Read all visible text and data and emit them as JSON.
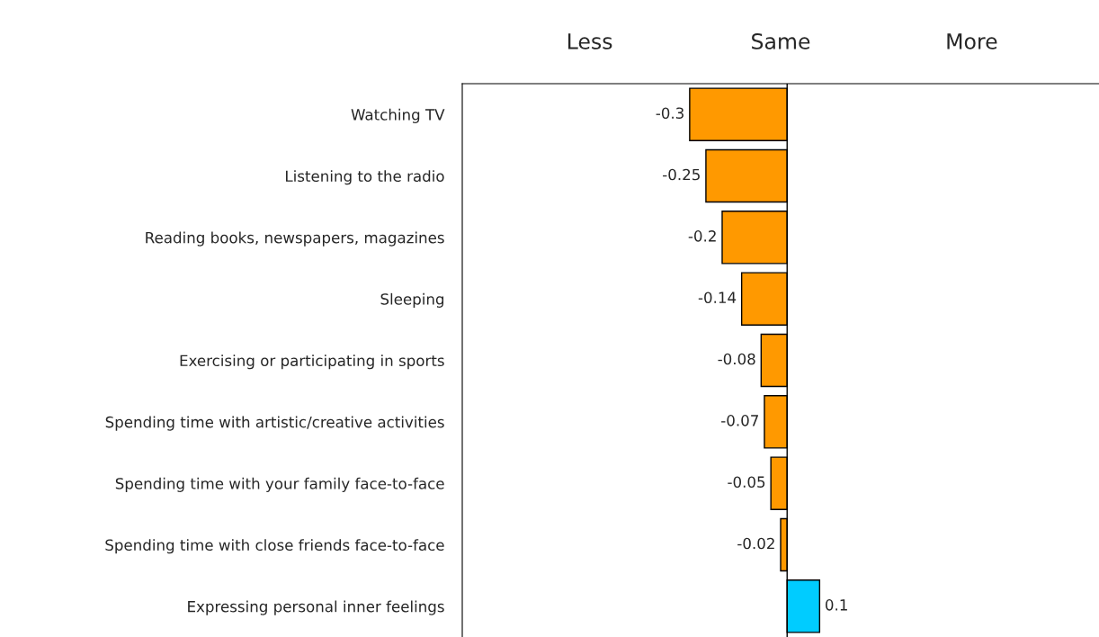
{
  "chart_data": {
    "type": "bar",
    "orientation": "horizontal",
    "categories": [
      "Watching TV",
      "Listening to the radio",
      "Reading books, newspapers, magazines",
      "Sleeping",
      "Exercising or participating in sports",
      "Spending time with artistic/creative activities",
      "Spending time with your family face-to-face",
      "Spending time with close friends face-to-face",
      "Expressing personal inner feelings"
    ],
    "values": [
      -0.3,
      -0.25,
      -0.2,
      -0.14,
      -0.08,
      -0.07,
      -0.05,
      -0.02,
      0.1
    ],
    "colors": [
      "#ff9900",
      "#ff9900",
      "#ff9900",
      "#ff9900",
      "#ff9900",
      "#ff9900",
      "#ff9900",
      "#ff9900",
      "#00ccff"
    ],
    "data_labels": true,
    "xlim": [
      -1,
      0.96
    ],
    "annotations": [
      "Less",
      "Same",
      "More"
    ],
    "ref_lines": [
      {
        "axis": "x",
        "value": 0,
        "color": "#000000"
      }
    ],
    "grid": false,
    "legend": false
  }
}
